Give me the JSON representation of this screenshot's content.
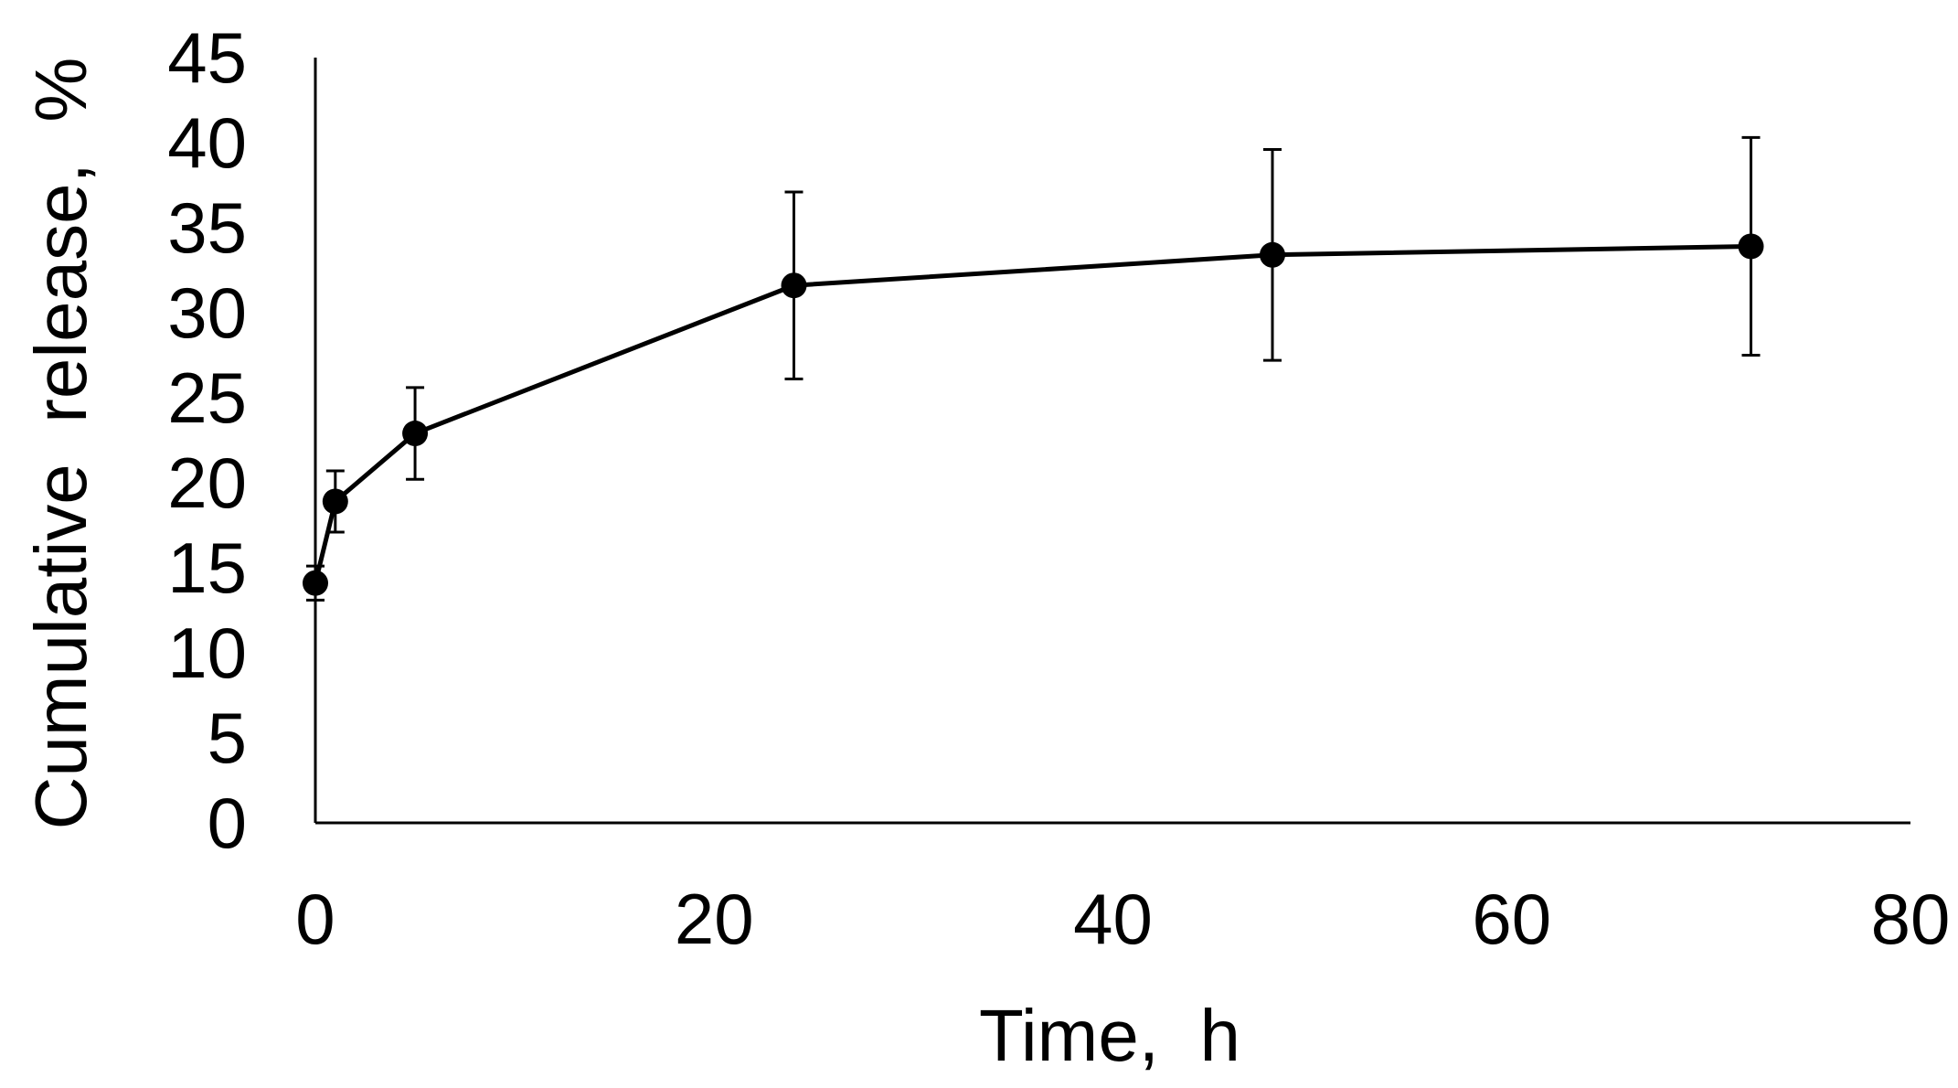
{
  "chart_data": {
    "type": "line",
    "title": "",
    "xlabel": "Time,  h",
    "ylabel": "Cumulative  release,  %",
    "xlim": [
      0,
      80
    ],
    "ylim": [
      0,
      45
    ],
    "x_ticks": [
      "0",
      "20",
      "40",
      "60",
      "80"
    ],
    "y_ticks": [
      "0",
      "5",
      "10",
      "15",
      "20",
      "25",
      "30",
      "35",
      "40",
      "45"
    ],
    "grid": false,
    "legend": "none",
    "series": [
      {
        "x": [
          0,
          1,
          5,
          24,
          48,
          72
        ],
        "y": [
          14.1,
          18.9,
          22.9,
          31.6,
          33.4,
          33.9
        ],
        "error": [
          1.0,
          1.8,
          2.7,
          5.5,
          6.2,
          6.4
        ],
        "color": "#000000",
        "marker": "filled-circle"
      }
    ]
  }
}
